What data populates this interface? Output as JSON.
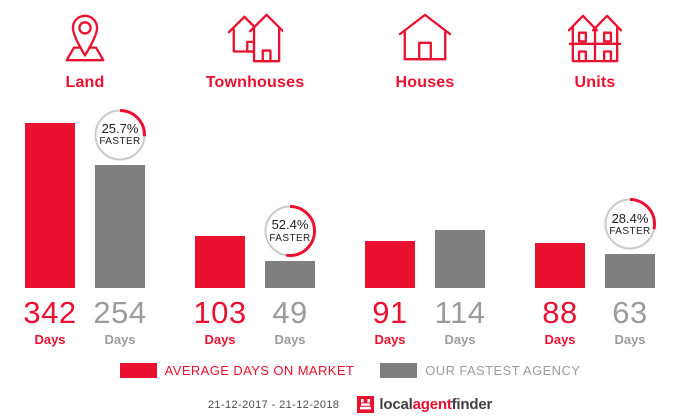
{
  "labels": {
    "days": "Days"
  },
  "colors": {
    "accent_red": "#E9112F",
    "bar_gray": "#7F7F7F",
    "muted_text_gray": "#9B9B9B",
    "badge_ring_gray": "#C9C9C9",
    "badge_text": "#1D1D1D",
    "date_text": "#4A4A4A",
    "logo_dark": "#414042"
  },
  "icons": {
    "land": "map-pin-on-ground",
    "townhouses": "two-overlapping-houses",
    "houses": "single-house",
    "units": "duplex-two-storey",
    "logo_mark": "red-square-building-mark"
  },
  "badges": [
    {
      "percent_text": "25.7%",
      "word": "FASTER",
      "fraction": 0.257
    },
    {
      "percent_text": "52.4%",
      "word": "FASTER",
      "fraction": 0.524
    },
    null,
    {
      "percent_text": "28.4%",
      "word": "FASTER",
      "fraction": 0.284
    }
  ],
  "legend": {
    "items": [
      {
        "label": "AVERAGE DAYS ON MARKET",
        "color": "#E9112F"
      },
      {
        "label": "OUR FASTEST AGENCY",
        "color": "#7F7F7F"
      }
    ]
  },
  "footer": {
    "date_range": "21-12-2017 - 21-12-2018",
    "logo": {
      "part1": "local",
      "part2": "agent",
      "part3": "finder"
    }
  },
  "chart_data": {
    "type": "bar",
    "title": "",
    "categories": [
      "Land",
      "Townhouses",
      "Houses",
      "Units"
    ],
    "series": [
      {
        "name": "AVERAGE DAYS ON MARKET",
        "color": "#E9112F",
        "values": [
          342,
          103,
          91,
          88
        ]
      },
      {
        "name": "OUR FASTEST AGENCY",
        "color": "#7F7F7F",
        "values": [
          254,
          49,
          114,
          63
        ]
      }
    ],
    "value_unit": "Days",
    "badges": [
      {
        "category": "Land",
        "percent_faster": 25.7
      },
      {
        "category": "Townhouses",
        "percent_faster": 52.4
      },
      {
        "category": "Units",
        "percent_faster": 28.4
      }
    ],
    "ylim": [
      0,
      342
    ],
    "grid": false,
    "legend_position": "bottom",
    "footnote": "21-12-2017 - 21-12-2018"
  }
}
